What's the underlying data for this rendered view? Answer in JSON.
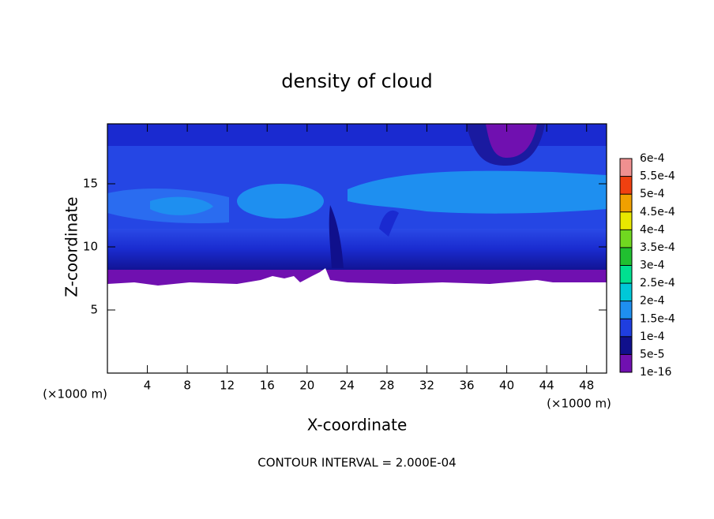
{
  "chart_data": {
    "type": "contour",
    "title": "density of cloud",
    "x_label": "X-coordinate",
    "y_label": "Z-coordinate",
    "x_unit": "(×1000 m)",
    "y_unit": "(×1000 m)",
    "note": "CONTOUR INTERVAL = 2.000E-04",
    "xlim": [
      0,
      50
    ],
    "xticks": [
      4,
      8,
      12,
      16,
      20,
      24,
      28,
      32,
      36,
      40,
      44,
      48
    ],
    "ylim": [
      0,
      19.75
    ],
    "yticks": [
      5,
      10,
      15
    ],
    "colorbar": {
      "ticks": [
        1e-16,
        {
          "value": 5e-05,
          "label": "5e-5"
        },
        {
          "value": 0.0001,
          "label": "1e-4"
        },
        {
          "value": 0.00015,
          "label": "1.5e-4"
        },
        {
          "value": 0.0002,
          "label": "2e-4"
        },
        {
          "value": 0.00025,
          "label": "2.5e-4"
        },
        {
          "value": 0.0003,
          "label": "3e-4"
        },
        {
          "value": 0.00035,
          "label": "3.5e-4"
        },
        {
          "value": 0.0004,
          "label": "4e-4"
        },
        {
          "value": 0.00045,
          "label": "4.5e-4"
        },
        {
          "value": 0.0005,
          "label": "5e-4"
        },
        {
          "value": 0.00055,
          "label": "5.5e-4"
        },
        {
          "value": 0.0006,
          "label": "6e-4"
        }
      ],
      "colors": [
        "#7010b0",
        "#10108c",
        "#1f3ee0",
        "#1e8ff0",
        "#00c8d8",
        "#00e090",
        "#20c030",
        "#70d820",
        "#e8e800",
        "#f0a000",
        "#f04010",
        "#f09090"
      ]
    }
  }
}
